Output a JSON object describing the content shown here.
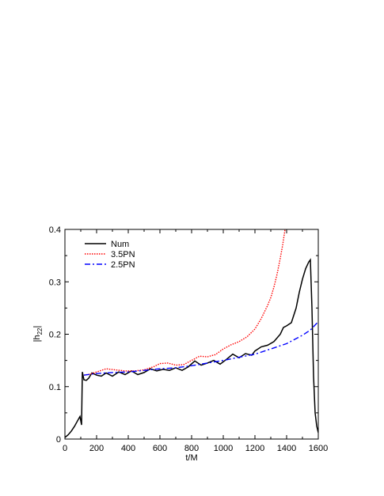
{
  "chart_data": {
    "type": "line",
    "xlabel": "t/M",
    "ylabel_main": "|h",
    "ylabel_sub": "22",
    "ylabel_end": "|",
    "xlim": [
      0,
      1600
    ],
    "ylim": [
      0,
      0.4
    ],
    "xticks": [
      0,
      200,
      400,
      600,
      800,
      1000,
      1200,
      1400,
      1600
    ],
    "xtick_labels": [
      "0",
      "200",
      "400",
      "600",
      "800",
      "1000",
      "1200",
      "1400",
      "1600"
    ],
    "yticks": [
      0,
      0.1,
      0.2,
      0.3,
      0.4
    ],
    "ytick_labels": [
      "0",
      "0.1",
      "0.2",
      "0.3",
      "0.4"
    ],
    "legend_position": "top-left",
    "series": [
      {
        "name": "Num",
        "color": "#000000",
        "dash": "solid",
        "x": [
          0,
          20,
          40,
          60,
          80,
          95,
          105,
          110,
          120,
          135,
          150,
          170,
          200,
          230,
          260,
          300,
          340,
          380,
          420,
          460,
          500,
          540,
          580,
          620,
          660,
          700,
          740,
          780,
          820,
          860,
          900,
          940,
          980,
          1020,
          1060,
          1100,
          1140,
          1180,
          1200,
          1240,
          1280,
          1320,
          1360,
          1380,
          1400,
          1430,
          1460,
          1480,
          1500,
          1520,
          1540,
          1550,
          1560,
          1570,
          1580,
          1590,
          1600
        ],
        "y": [
          0.003,
          0.008,
          0.015,
          0.024,
          0.035,
          0.043,
          0.027,
          0.128,
          0.113,
          0.112,
          0.116,
          0.126,
          0.122,
          0.12,
          0.126,
          0.12,
          0.128,
          0.123,
          0.13,
          0.123,
          0.127,
          0.134,
          0.13,
          0.133,
          0.131,
          0.136,
          0.131,
          0.138,
          0.149,
          0.141,
          0.145,
          0.15,
          0.143,
          0.152,
          0.162,
          0.155,
          0.163,
          0.16,
          0.168,
          0.176,
          0.179,
          0.186,
          0.2,
          0.213,
          0.216,
          0.222,
          0.25,
          0.28,
          0.305,
          0.325,
          0.338,
          0.342,
          0.25,
          0.12,
          0.05,
          0.025,
          0.012
        ]
      },
      {
        "name": "3.5PN",
        "color": "#ff0000",
        "dash": "dotted",
        "x": [
          120,
          160,
          200,
          260,
          320,
          380,
          440,
          500,
          560,
          600,
          650,
          700,
          750,
          800,
          850,
          900,
          950,
          1000,
          1050,
          1100,
          1150,
          1200,
          1240,
          1280,
          1300,
          1320,
          1340,
          1360,
          1375,
          1385,
          1390
        ],
        "y": [
          0.122,
          0.124,
          0.128,
          0.134,
          0.132,
          0.13,
          0.13,
          0.132,
          0.138,
          0.144,
          0.145,
          0.141,
          0.142,
          0.15,
          0.158,
          0.157,
          0.161,
          0.172,
          0.18,
          0.186,
          0.195,
          0.21,
          0.23,
          0.255,
          0.27,
          0.29,
          0.315,
          0.345,
          0.37,
          0.39,
          0.4
        ]
      },
      {
        "name": "2.5PN",
        "color": "#0000ff",
        "dash": "dashdot",
        "x": [
          120,
          200,
          300,
          400,
          500,
          600,
          700,
          800,
          900,
          1000,
          1100,
          1200,
          1300,
          1400,
          1500,
          1550,
          1600
        ],
        "y": [
          0.122,
          0.125,
          0.127,
          0.128,
          0.131,
          0.134,
          0.136,
          0.14,
          0.145,
          0.15,
          0.156,
          0.162,
          0.172,
          0.182,
          0.198,
          0.208,
          0.224
        ]
      }
    ]
  }
}
